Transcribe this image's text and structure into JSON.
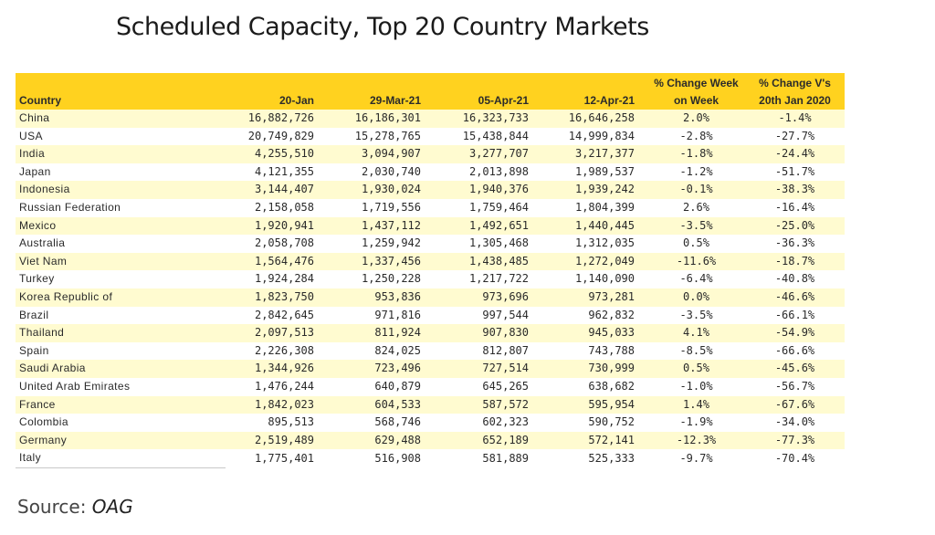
{
  "chart_data": {
    "type": "table",
    "title": "Scheduled Capacity, Top 20 Country Markets",
    "columns": [
      "Country",
      "20-Jan",
      "29-Mar-21",
      "05-Apr-21",
      "12-Apr-21",
      "% Change Week on Week",
      "% Change V's 20th Jan 2020"
    ],
    "rows": [
      [
        "China",
        "16,882,726",
        "16,186,301",
        "16,323,733",
        "16,646,258",
        "2.0%",
        "-1.4%"
      ],
      [
        "USA",
        "20,749,829",
        "15,278,765",
        "15,438,844",
        "14,999,834",
        "-2.8%",
        "-27.7%"
      ],
      [
        "India",
        "4,255,510",
        "3,094,907",
        "3,277,707",
        "3,217,377",
        "-1.8%",
        "-24.4%"
      ],
      [
        "Japan",
        "4,121,355",
        "2,030,740",
        "2,013,898",
        "1,989,537",
        "-1.2%",
        "-51.7%"
      ],
      [
        "Indonesia",
        "3,144,407",
        "1,930,024",
        "1,940,376",
        "1,939,242",
        "-0.1%",
        "-38.3%"
      ],
      [
        "Russian Federation",
        "2,158,058",
        "1,719,556",
        "1,759,464",
        "1,804,399",
        "2.6%",
        "-16.4%"
      ],
      [
        "Mexico",
        "1,920,941",
        "1,437,112",
        "1,492,651",
        "1,440,445",
        "-3.5%",
        "-25.0%"
      ],
      [
        "Australia",
        "2,058,708",
        "1,259,942",
        "1,305,468",
        "1,312,035",
        "0.5%",
        "-36.3%"
      ],
      [
        "Viet Nam",
        "1,564,476",
        "1,337,456",
        "1,438,485",
        "1,272,049",
        "-11.6%",
        "-18.7%"
      ],
      [
        "Turkey",
        "1,924,284",
        "1,250,228",
        "1,217,722",
        "1,140,090",
        "-6.4%",
        "-40.8%"
      ],
      [
        "Korea Republic of",
        "1,823,750",
        "953,836",
        "973,696",
        "973,281",
        "0.0%",
        "-46.6%"
      ],
      [
        "Brazil",
        "2,842,645",
        "971,816",
        "997,544",
        "962,832",
        "-3.5%",
        "-66.1%"
      ],
      [
        "Thailand",
        "2,097,513",
        "811,924",
        "907,830",
        "945,033",
        "4.1%",
        "-54.9%"
      ],
      [
        "Spain",
        "2,226,308",
        "824,025",
        "812,807",
        "743,788",
        "-8.5%",
        "-66.6%"
      ],
      [
        "Saudi Arabia",
        "1,344,926",
        "723,496",
        "727,514",
        "730,999",
        "0.5%",
        "-45.6%"
      ],
      [
        "United Arab Emirates",
        "1,476,244",
        "640,879",
        "645,265",
        "638,682",
        "-1.0%",
        "-56.7%"
      ],
      [
        "France",
        "1,842,023",
        "604,533",
        "587,572",
        "595,954",
        "1.4%",
        "-67.6%"
      ],
      [
        "Colombia",
        "895,513",
        "568,746",
        "602,323",
        "590,752",
        "-1.9%",
        "-34.0%"
      ],
      [
        "Germany",
        "2,519,489",
        "629,488",
        "652,189",
        "572,141",
        "-12.3%",
        "-77.3%"
      ],
      [
        "Italy",
        "1,775,401",
        "516,908",
        "581,889",
        "525,333",
        "-9.7%",
        "-70.4%"
      ]
    ]
  },
  "source": {
    "label": "Source:",
    "value": "OAG"
  },
  "colors": {
    "header": "#ffd21f",
    "band": "#fffbd0"
  }
}
